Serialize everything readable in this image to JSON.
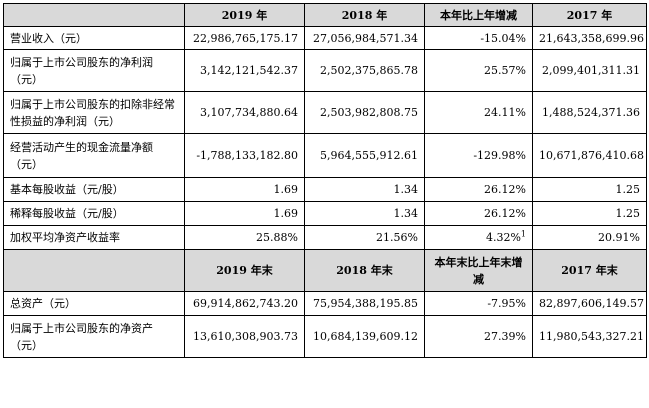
{
  "header": {
    "col1": "2019 年",
    "col2": "2018 年",
    "col3": "本年比上年增减",
    "col4": "2017 年"
  },
  "rows": [
    {
      "label": "营业收入（元）",
      "v2019": "22,986,765,175.17",
      "v2018": "27,056,984,571.34",
      "change": "-15.04%",
      "v2017": "21,643,358,699.96"
    },
    {
      "label": "归属于上市公司股东的净利润（元）",
      "v2019": "3,142,121,542.37",
      "v2018": "2,502,375,865.78",
      "change": "25.57%",
      "v2017": "2,099,401,311.31"
    },
    {
      "label": "归属于上市公司股东的扣除非经常性损益的净利润（元）",
      "v2019": "3,107,734,880.64",
      "v2018": "2,503,982,808.75",
      "change": "24.11%",
      "v2017": "1,488,524,371.36"
    },
    {
      "label": "经营活动产生的现金流量净额（元）",
      "v2019": "-1,788,133,182.80",
      "v2018": "5,964,555,912.61",
      "change": "-129.98%",
      "v2017": "10,671,876,410.68"
    },
    {
      "label": "基本每股收益（元/股）",
      "v2019": "1.69",
      "v2018": "1.34",
      "change": "26.12%",
      "v2017": "1.25"
    },
    {
      "label": "稀释每股收益（元/股）",
      "v2019": "1.69",
      "v2018": "1.34",
      "change": "26.12%",
      "v2017": "1.25"
    },
    {
      "label": "加权平均净资产收益率",
      "v2019": "25.88%",
      "v2018": "21.56%",
      "change": "4.32%",
      "change_note": "1",
      "v2017": "20.91%"
    }
  ],
  "header2": {
    "col1": "2019 年末",
    "col2": "2018 年末",
    "col3": "本年末比上年末增减",
    "col4": "2017 年末"
  },
  "rows2": [
    {
      "label": "总资产（元）",
      "v2019": "69,914,862,743.20",
      "v2018": "75,954,388,195.85",
      "change": "-7.95%",
      "v2017": "82,897,606,149.57"
    },
    {
      "label": "归属于上市公司股东的净资产（元）",
      "v2019": "13,610,308,903.73",
      "v2018": "10,684,139,609.12",
      "change": "27.39%",
      "v2017": "11,980,543,327.21"
    }
  ]
}
